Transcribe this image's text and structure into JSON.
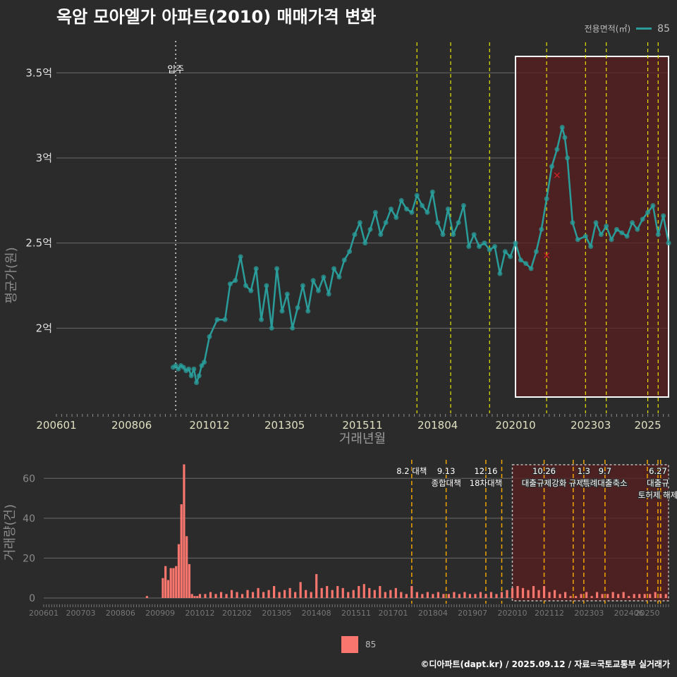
{
  "title": "옥암 모아엘가 아파트(2010) 매매가격 변화",
  "legend": {
    "title": "전용면적(㎡)",
    "value": "85",
    "line_color": "#2a9d9a",
    "bar_color": "#f8766d"
  },
  "credit": "©디아파트(dapt.kr) / 2025.09.12 / 자료=국토교통부 실거래가",
  "colors": {
    "background": "#2b2b2c",
    "price": "#2a9d9a",
    "volume": "#f8766d",
    "policy_line": "#e6e600",
    "policy_line_bottom": "#f0a500",
    "highlight_fill": "#5a1f1f",
    "highlight_border": "#ffffff",
    "anomaly": "#dd2222"
  },
  "chart_data": [
    {
      "type": "line",
      "subtype": "line+scatter",
      "xlabel": "거래년월",
      "ylabel": "평균가(원)",
      "x_ticks": [
        "200601",
        "200806",
        "201012",
        "201305",
        "201511",
        "201804",
        "202010",
        "202303",
        "2025"
      ],
      "y_ticks": [
        "2억",
        "2.5억",
        "3억",
        "3.5억"
      ],
      "ylim": [
        150000000,
        370000000
      ],
      "xlim": [
        "2006-01",
        "2025-09"
      ],
      "grid": true,
      "annotation": {
        "x": "2009-11",
        "label": "입주"
      },
      "policy_lines": [
        "2017-08",
        "2018-09",
        "2019-12",
        "2021-10",
        "2023-01",
        "2023-09",
        "2025-01",
        "2025-05"
      ],
      "highlight_range": [
        "2020-10",
        "2025-09"
      ],
      "series": [
        {
          "name": "85",
          "points": [
            [
              "2009-10",
              177000000
            ],
            [
              "2009-11",
              178000000
            ],
            [
              "2009-12",
              176000000
            ],
            [
              "2010-01",
              178000000
            ],
            [
              "2010-02",
              177000000
            ],
            [
              "2010-03",
              175000000
            ],
            [
              "2010-04",
              176000000
            ],
            [
              "2010-05",
              172000000
            ],
            [
              "2010-06",
              176000000
            ],
            [
              "2010-07",
              168000000
            ],
            [
              "2010-08",
              172000000
            ],
            [
              "2010-09",
              178000000
            ],
            [
              "2010-10",
              180000000
            ],
            [
              "2010-12",
              195000000
            ],
            [
              "2011-03",
              205000000
            ],
            [
              "2011-06",
              205000000
            ],
            [
              "2011-08",
              226000000
            ],
            [
              "2011-10",
              228000000
            ],
            [
              "2011-12",
              242000000
            ],
            [
              "2012-02",
              225000000
            ],
            [
              "2012-04",
              222000000
            ],
            [
              "2012-06",
              235000000
            ],
            [
              "2012-08",
              205000000
            ],
            [
              "2012-10",
              225000000
            ],
            [
              "2012-12",
              200000000
            ],
            [
              "2013-02",
              235000000
            ],
            [
              "2013-04",
              210000000
            ],
            [
              "2013-06",
              220000000
            ],
            [
              "2013-08",
              200000000
            ],
            [
              "2013-10",
              212000000
            ],
            [
              "2013-12",
              225000000
            ],
            [
              "2014-02",
              210000000
            ],
            [
              "2014-04",
              228000000
            ],
            [
              "2014-06",
              222000000
            ],
            [
              "2014-08",
              230000000
            ],
            [
              "2014-10",
              220000000
            ],
            [
              "2014-12",
              235000000
            ],
            [
              "2015-02",
              230000000
            ],
            [
              "2015-04",
              240000000
            ],
            [
              "2015-06",
              245000000
            ],
            [
              "2015-08",
              255000000
            ],
            [
              "2015-10",
              262000000
            ],
            [
              "2015-12",
              250000000
            ],
            [
              "2016-02",
              258000000
            ],
            [
              "2016-04",
              268000000
            ],
            [
              "2016-06",
              255000000
            ],
            [
              "2016-08",
              262000000
            ],
            [
              "2016-10",
              270000000
            ],
            [
              "2016-12",
              265000000
            ],
            [
              "2017-02",
              275000000
            ],
            [
              "2017-04",
              270000000
            ],
            [
              "2017-06",
              268000000
            ],
            [
              "2017-08",
              278000000
            ],
            [
              "2017-10",
              272000000
            ],
            [
              "2017-12",
              268000000
            ],
            [
              "2018-02",
              280000000
            ],
            [
              "2018-04",
              262000000
            ],
            [
              "2018-06",
              255000000
            ],
            [
              "2018-08",
              270000000
            ],
            [
              "2018-10",
              255000000
            ],
            [
              "2018-12",
              262000000
            ],
            [
              "2019-02",
              272000000
            ],
            [
              "2019-04",
              248000000
            ],
            [
              "2019-06",
              255000000
            ],
            [
              "2019-08",
              248000000
            ],
            [
              "2019-10",
              250000000
            ],
            [
              "2019-12",
              246000000
            ],
            [
              "2020-02",
              248000000
            ],
            [
              "2020-04",
              232000000
            ],
            [
              "2020-06",
              245000000
            ],
            [
              "2020-08",
              242000000
            ],
            [
              "2020-10",
              250000000
            ],
            [
              "2020-12",
              240000000
            ],
            [
              "2021-02",
              238000000
            ],
            [
              "2021-04",
              235000000
            ],
            [
              "2021-06",
              245000000
            ],
            [
              "2021-08",
              258000000
            ],
            [
              "2021-10",
              276000000
            ],
            [
              "2021-12",
              295000000
            ],
            [
              "2022-02",
              305000000
            ],
            [
              "2022-04",
              318000000
            ],
            [
              "2022-05",
              312000000
            ],
            [
              "2022-06",
              300000000
            ],
            [
              "2022-08",
              262000000
            ],
            [
              "2022-10",
              252000000
            ],
            [
              "2023-01",
              254000000
            ],
            [
              "2023-03",
              248000000
            ],
            [
              "2023-05",
              262000000
            ],
            [
              "2023-07",
              255000000
            ],
            [
              "2023-09",
              260000000
            ],
            [
              "2023-11",
              252000000
            ],
            [
              "2024-01",
              258000000
            ],
            [
              "2024-03",
              256000000
            ],
            [
              "2024-05",
              254000000
            ],
            [
              "2024-07",
              262000000
            ],
            [
              "2024-09",
              258000000
            ],
            [
              "2024-11",
              264000000
            ],
            [
              "2025-01",
              268000000
            ],
            [
              "2025-03",
              272000000
            ],
            [
              "2025-05",
              255000000
            ],
            [
              "2025-07",
              266000000
            ],
            [
              "2025-09",
              250000000
            ]
          ]
        }
      ],
      "anomalies": [
        [
          "2021-10",
          243000000
        ],
        [
          "2022-02",
          290000000
        ]
      ]
    },
    {
      "type": "bar",
      "xlabel": "",
      "ylabel": "거래량(건)",
      "x_ticks": [
        "200601",
        "200703",
        "200806",
        "200909",
        "201012",
        "201202",
        "201305",
        "201408",
        "201511",
        "201701",
        "201804",
        "201907",
        "202010",
        "202112",
        "202303",
        "202406",
        "20250"
      ],
      "y_ticks": [
        "0",
        "20",
        "40",
        "60"
      ],
      "ylim": [
        0,
        70
      ],
      "xlim": [
        "2006-01",
        "2025-09"
      ],
      "grid": true,
      "series": [
        {
          "name": "85",
          "volumes": [
            [
              "2009-04",
              1
            ],
            [
              "2009-10",
              10
            ],
            [
              "2009-11",
              16
            ],
            [
              "2009-12",
              9
            ],
            [
              "2010-01",
              15
            ],
            [
              "2010-02",
              15
            ],
            [
              "2010-03",
              16
            ],
            [
              "2010-04",
              27
            ],
            [
              "2010-05",
              47
            ],
            [
              "2010-06",
              67
            ],
            [
              "2010-07",
              31
            ],
            [
              "2010-08",
              17
            ],
            [
              "2010-09",
              2
            ],
            [
              "2010-10",
              1
            ],
            [
              "2010-11",
              1
            ],
            [
              "2010-12",
              2
            ],
            [
              "2011-02",
              2
            ],
            [
              "2011-04",
              3
            ],
            [
              "2011-06",
              2
            ],
            [
              "2011-08",
              3
            ],
            [
              "2011-10",
              2
            ],
            [
              "2011-12",
              4
            ],
            [
              "2012-02",
              3
            ],
            [
              "2012-04",
              2
            ],
            [
              "2012-06",
              4
            ],
            [
              "2012-08",
              3
            ],
            [
              "2012-10",
              5
            ],
            [
              "2012-12",
              3
            ],
            [
              "2013-02",
              4
            ],
            [
              "2013-04",
              6
            ],
            [
              "2013-06",
              3
            ],
            [
              "2013-08",
              4
            ],
            [
              "2013-10",
              5
            ],
            [
              "2013-12",
              3
            ],
            [
              "2014-02",
              8
            ],
            [
              "2014-04",
              4
            ],
            [
              "2014-06",
              3
            ],
            [
              "2014-08",
              12
            ],
            [
              "2014-10",
              5
            ],
            [
              "2014-12",
              6
            ],
            [
              "2015-02",
              4
            ],
            [
              "2015-04",
              6
            ],
            [
              "2015-06",
              5
            ],
            [
              "2015-08",
              3
            ],
            [
              "2015-10",
              4
            ],
            [
              "2015-12",
              6
            ],
            [
              "2016-02",
              7
            ],
            [
              "2016-04",
              5
            ],
            [
              "2016-06",
              4
            ],
            [
              "2016-08",
              6
            ],
            [
              "2016-10",
              3
            ],
            [
              "2016-12",
              4
            ],
            [
              "2017-02",
              5
            ],
            [
              "2017-04",
              3
            ],
            [
              "2017-06",
              2
            ],
            [
              "2017-08",
              6
            ],
            [
              "2017-10",
              3
            ],
            [
              "2017-12",
              2
            ],
            [
              "2018-02",
              3
            ],
            [
              "2018-04",
              2
            ],
            [
              "2018-06",
              3
            ],
            [
              "2018-08",
              2
            ],
            [
              "2018-10",
              2
            ],
            [
              "2018-12",
              3
            ],
            [
              "2019-02",
              2
            ],
            [
              "2019-04",
              3
            ],
            [
              "2019-06",
              2
            ],
            [
              "2019-08",
              2
            ],
            [
              "2019-10",
              3
            ],
            [
              "2019-12",
              2
            ],
            [
              "2020-02",
              3
            ],
            [
              "2020-04",
              2
            ],
            [
              "2020-06",
              3
            ],
            [
              "2020-08",
              4
            ],
            [
              "2020-10",
              5
            ],
            [
              "2020-12",
              6
            ],
            [
              "2021-02",
              5
            ],
            [
              "2021-04",
              4
            ],
            [
              "2021-06",
              6
            ],
            [
              "2021-08",
              4
            ],
            [
              "2021-10",
              6
            ],
            [
              "2021-12",
              3
            ],
            [
              "2022-02",
              4
            ],
            [
              "2022-04",
              2
            ],
            [
              "2022-06",
              3
            ],
            [
              "2022-08",
              1
            ],
            [
              "2022-10",
              1
            ],
            [
              "2022-12",
              2
            ],
            [
              "2023-02",
              3
            ],
            [
              "2023-04",
              1
            ],
            [
              "2023-06",
              3
            ],
            [
              "2023-08",
              2
            ],
            [
              "2023-10",
              2
            ],
            [
              "2023-12",
              3
            ],
            [
              "2024-02",
              2
            ],
            [
              "2024-04",
              3
            ],
            [
              "2024-06",
              1
            ],
            [
              "2024-08",
              2
            ],
            [
              "2024-10",
              2
            ],
            [
              "2024-12",
              2
            ],
            [
              "2025-02",
              2
            ],
            [
              "2025-04",
              3
            ],
            [
              "2025-06",
              2
            ],
            [
              "2025-08",
              2
            ]
          ]
        }
      ],
      "highlight_range": [
        "2020-10",
        "2025-09"
      ],
      "policy_lines": [
        "2017-08",
        "2018-09",
        "2019-12",
        "2020-06",
        "2021-10",
        "2022-09",
        "2023-01",
        "2023-09",
        "2025-01",
        "2025-05",
        "2025-06"
      ],
      "policy_labels": [
        {
          "x": "2017-08",
          "lines": [
            "8.2 대책"
          ]
        },
        {
          "x": "2018-09",
          "lines": [
            "9.13",
            "종합대책"
          ]
        },
        {
          "x": "2019-12",
          "lines": [
            "12.16",
            "18차대책"
          ]
        },
        {
          "x": "2021-10",
          "lines": [
            "10.26",
            "대출규제강화"
          ]
        },
        {
          "x": "2023-01",
          "lines": [
            "1.3",
            "규제완화"
          ]
        },
        {
          "x": "2023-09",
          "lines": [
            "9.7",
            "특례대출축소"
          ]
        },
        {
          "x": "2025-05",
          "lines": [
            "6.27",
            "대출규",
            "토허제 해제"
          ]
        }
      ]
    }
  ]
}
